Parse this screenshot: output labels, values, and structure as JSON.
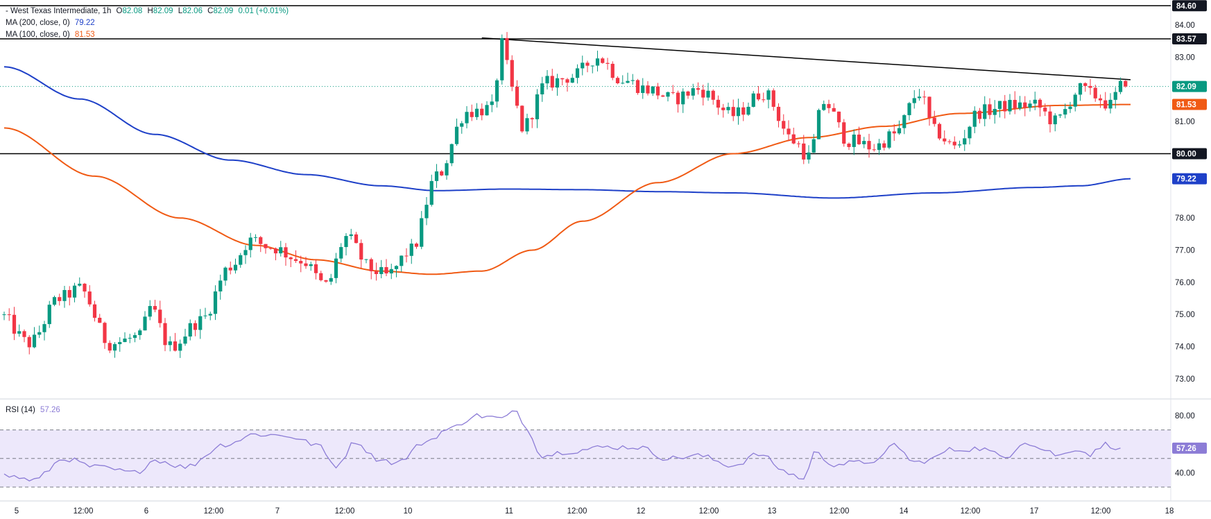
{
  "header": {
    "symbol": "- West Texas Intermediate, 1h",
    "open_label": "O",
    "open": "82.08",
    "high_label": "H",
    "high": "82.09",
    "low_label": "L",
    "low": "82.06",
    "close_label": "C",
    "close": "82.09",
    "change": "0.01 (+0.01%)",
    "up_color": "#089981"
  },
  "indicators": {
    "ma200": {
      "label": "MA (200, close, 0)",
      "value": "79.22",
      "color": "#1e40c8"
    },
    "ma100": {
      "label": "MA (100, close, 0)",
      "value": "81.53",
      "color": "#f05a14"
    }
  },
  "rsi": {
    "label": "RSI (14)",
    "value": "57.26",
    "color": "#8c7cd6",
    "band_fill": "#ede8fb",
    "ticks": [
      "80.00",
      "40.00"
    ],
    "levels": [
      70,
      50,
      30
    ]
  },
  "price_axis": {
    "ticks": [
      "84.00",
      "83.00",
      "81.00",
      "78.00",
      "77.00",
      "76.00",
      "75.00",
      "74.00",
      "73.00"
    ]
  },
  "price_labels": [
    {
      "text": "84.60",
      "value": 84.6,
      "bg": "#131722",
      "fg": "#ffffff"
    },
    {
      "text": "83.57",
      "value": 83.57,
      "bg": "#131722",
      "fg": "#ffffff"
    },
    {
      "text": "82.09",
      "value": 82.09,
      "bg": "#089981",
      "fg": "#ffffff"
    },
    {
      "text": "81.53",
      "value": 81.53,
      "bg": "#f05a14",
      "fg": "#ffffff"
    },
    {
      "text": "80.00",
      "value": 80.0,
      "bg": "#131722",
      "fg": "#ffffff"
    },
    {
      "text": "79.22",
      "value": 79.22,
      "bg": "#1e40c8",
      "fg": "#ffffff"
    }
  ],
  "time_axis": [
    "5",
    "12:00",
    "6",
    "12:00",
    "7",
    "12:00",
    "10",
    "11",
    "12:00",
    "12",
    "12:00",
    "13",
    "12:00",
    "14",
    "12:00",
    "17",
    "12:00",
    "18"
  ],
  "colors": {
    "up": "#089981",
    "down": "#f23645",
    "grid": "#e0e3eb",
    "text": "#131722"
  },
  "chart_data": {
    "type": "candlestick",
    "title": "West Texas Intermediate, 1h",
    "x_ticks": [
      "5",
      "12:00",
      "6",
      "12:00",
      "7",
      "12:00",
      "10",
      "11",
      "12:00",
      "12",
      "12:00",
      "13",
      "12:00",
      "14",
      "12:00",
      "17",
      "12:00",
      "18"
    ],
    "ylim": [
      72.5,
      84.85
    ],
    "horizontal_lines": [
      84.6,
      83.57,
      80.0
    ],
    "trendline": {
      "from": {
        "bar": 95,
        "price": 83.6
      },
      "to": {
        "bar": 224,
        "price": 82.3
      }
    },
    "last": {
      "open": 82.08,
      "high": 82.09,
      "low": 82.06,
      "close": 82.09
    },
    "waypoints": [
      {
        "bar": 0,
        "price": 75.0
      },
      {
        "bar": 6,
        "price": 74.1
      },
      {
        "bar": 12,
        "price": 75.5
      },
      {
        "bar": 16,
        "price": 75.8
      },
      {
        "bar": 22,
        "price": 74.1
      },
      {
        "bar": 28,
        "price": 74.3
      },
      {
        "bar": 30,
        "price": 75.2
      },
      {
        "bar": 34,
        "price": 74.0
      },
      {
        "bar": 40,
        "price": 74.8
      },
      {
        "bar": 46,
        "price": 76.5
      },
      {
        "bar": 50,
        "price": 77.3
      },
      {
        "bar": 54,
        "price": 77.1
      },
      {
        "bar": 60,
        "price": 76.7
      },
      {
        "bar": 65,
        "price": 75.9
      },
      {
        "bar": 69,
        "price": 77.4
      },
      {
        "bar": 74,
        "price": 76.4
      },
      {
        "bar": 77,
        "price": 76.2
      },
      {
        "bar": 82,
        "price": 77.0
      },
      {
        "bar": 87,
        "price": 79.3
      },
      {
        "bar": 93,
        "price": 81.3
      },
      {
        "bar": 98,
        "price": 81.4
      },
      {
        "bar": 100,
        "price": 83.4
      },
      {
        "bar": 102,
        "price": 82.0
      },
      {
        "bar": 104,
        "price": 80.8
      },
      {
        "bar": 109,
        "price": 82.2
      },
      {
        "bar": 114,
        "price": 82.4
      },
      {
        "bar": 119,
        "price": 83.0
      },
      {
        "bar": 124,
        "price": 82.3
      },
      {
        "bar": 129,
        "price": 82.0
      },
      {
        "bar": 134,
        "price": 81.7
      },
      {
        "bar": 139,
        "price": 82.0
      },
      {
        "bar": 146,
        "price": 81.2
      },
      {
        "bar": 152,
        "price": 81.9
      },
      {
        "bar": 158,
        "price": 80.4
      },
      {
        "bar": 161,
        "price": 79.9
      },
      {
        "bar": 164,
        "price": 81.6
      },
      {
        "bar": 169,
        "price": 80.4
      },
      {
        "bar": 174,
        "price": 80.2
      },
      {
        "bar": 178,
        "price": 80.6
      },
      {
        "bar": 183,
        "price": 81.9
      },
      {
        "bar": 186,
        "price": 80.7
      },
      {
        "bar": 190,
        "price": 80.2
      },
      {
        "bar": 195,
        "price": 81.3
      },
      {
        "bar": 201,
        "price": 81.5
      },
      {
        "bar": 206,
        "price": 81.5
      },
      {
        "bar": 210,
        "price": 81.0
      },
      {
        "bar": 215,
        "price": 82.0
      },
      {
        "bar": 218,
        "price": 81.8
      },
      {
        "bar": 221,
        "price": 81.5
      },
      {
        "bar": 223,
        "price": 82.09
      }
    ],
    "ma200": [
      {
        "bar": 0,
        "price": 82.7
      },
      {
        "bar": 15,
        "price": 81.7
      },
      {
        "bar": 30,
        "price": 80.6
      },
      {
        "bar": 45,
        "price": 79.8
      },
      {
        "bar": 60,
        "price": 79.35
      },
      {
        "bar": 75,
        "price": 79.0
      },
      {
        "bar": 86,
        "price": 78.85
      },
      {
        "bar": 100,
        "price": 78.9
      },
      {
        "bar": 115,
        "price": 78.88
      },
      {
        "bar": 130,
        "price": 78.82
      },
      {
        "bar": 145,
        "price": 78.78
      },
      {
        "bar": 165,
        "price": 78.62
      },
      {
        "bar": 185,
        "price": 78.78
      },
      {
        "bar": 205,
        "price": 78.95
      },
      {
        "bar": 214,
        "price": 79.0
      },
      {
        "bar": 224,
        "price": 79.22
      }
    ],
    "ma100": [
      {
        "bar": 0,
        "price": 80.8
      },
      {
        "bar": 18,
        "price": 79.3
      },
      {
        "bar": 35,
        "price": 78.0
      },
      {
        "bar": 50,
        "price": 77.15
      },
      {
        "bar": 62,
        "price": 76.7
      },
      {
        "bar": 75,
        "price": 76.35
      },
      {
        "bar": 85,
        "price": 76.25
      },
      {
        "bar": 95,
        "price": 76.35
      },
      {
        "bar": 105,
        "price": 77.0
      },
      {
        "bar": 115,
        "price": 77.9
      },
      {
        "bar": 130,
        "price": 79.1
      },
      {
        "bar": 145,
        "price": 80.0
      },
      {
        "bar": 160,
        "price": 80.5
      },
      {
        "bar": 175,
        "price": 80.85
      },
      {
        "bar": 190,
        "price": 81.25
      },
      {
        "bar": 210,
        "price": 81.5
      },
      {
        "bar": 224,
        "price": 81.53
      }
    ],
    "rsi": [
      {
        "bar": 0,
        "value": 38
      },
      {
        "bar": 6,
        "value": 35
      },
      {
        "bar": 12,
        "value": 50
      },
      {
        "bar": 18,
        "value": 44
      },
      {
        "bar": 26,
        "value": 40
      },
      {
        "bar": 30,
        "value": 49
      },
      {
        "bar": 36,
        "value": 44
      },
      {
        "bar": 44,
        "value": 60
      },
      {
        "bar": 50,
        "value": 67
      },
      {
        "bar": 56,
        "value": 66
      },
      {
        "bar": 62,
        "value": 60
      },
      {
        "bar": 66,
        "value": 45
      },
      {
        "bar": 70,
        "value": 62
      },
      {
        "bar": 74,
        "value": 50
      },
      {
        "bar": 78,
        "value": 47
      },
      {
        "bar": 84,
        "value": 62
      },
      {
        "bar": 88,
        "value": 70
      },
      {
        "bar": 94,
        "value": 80
      },
      {
        "bar": 99,
        "value": 78
      },
      {
        "bar": 102,
        "value": 83
      },
      {
        "bar": 104,
        "value": 70
      },
      {
        "bar": 107,
        "value": 52
      },
      {
        "bar": 112,
        "value": 55
      },
      {
        "bar": 120,
        "value": 58
      },
      {
        "bar": 126,
        "value": 58
      },
      {
        "bar": 132,
        "value": 50
      },
      {
        "bar": 138,
        "value": 52
      },
      {
        "bar": 145,
        "value": 45
      },
      {
        "bar": 150,
        "value": 53
      },
      {
        "bar": 156,
        "value": 40
      },
      {
        "bar": 159,
        "value": 35
      },
      {
        "bar": 161,
        "value": 54
      },
      {
        "bar": 165,
        "value": 46
      },
      {
        "bar": 170,
        "value": 47
      },
      {
        "bar": 174,
        "value": 49
      },
      {
        "bar": 177,
        "value": 60
      },
      {
        "bar": 181,
        "value": 47
      },
      {
        "bar": 184,
        "value": 49
      },
      {
        "bar": 188,
        "value": 56
      },
      {
        "bar": 194,
        "value": 57
      },
      {
        "bar": 199,
        "value": 51
      },
      {
        "bar": 203,
        "value": 62
      },
      {
        "bar": 206,
        "value": 57
      },
      {
        "bar": 210,
        "value": 52
      },
      {
        "bar": 213,
        "value": 57
      },
      {
        "bar": 216,
        "value": 53
      },
      {
        "bar": 219,
        "value": 60
      },
      {
        "bar": 222,
        "value": 57.26
      }
    ]
  }
}
